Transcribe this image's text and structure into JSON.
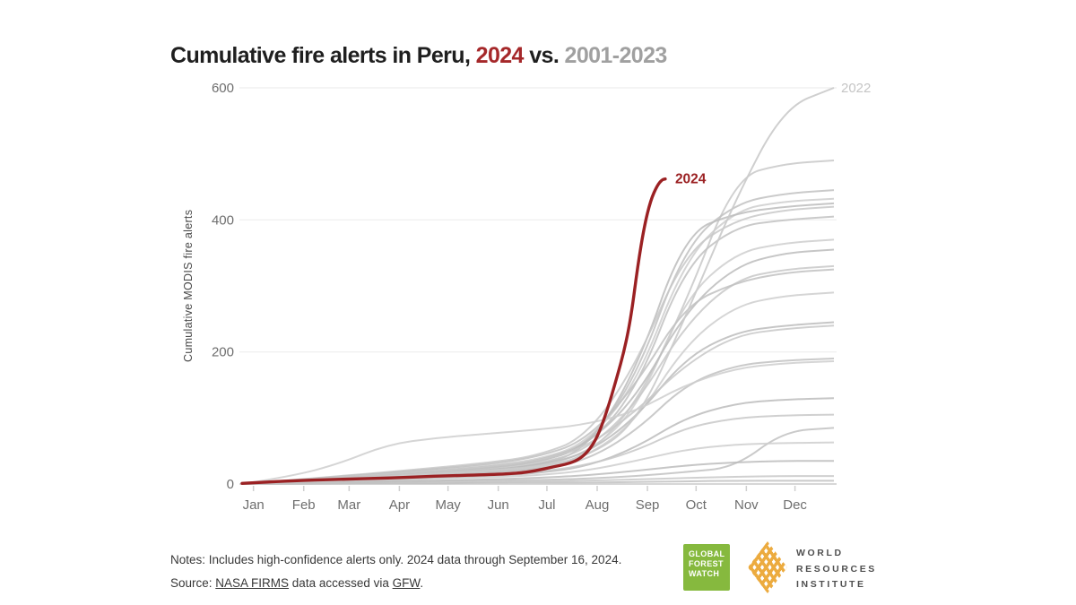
{
  "title": {
    "part_black": "Cumulative fire alerts in Peru, ",
    "part_red": "2024",
    "part_vs": " vs. ",
    "part_gray": "2001-2023"
  },
  "colors": {
    "highlight_red": "#9b2123",
    "title_red": "#a5282a",
    "title_gray": "#a0a0a0",
    "background_line_gray": "#c7c7c7",
    "axis_text": "#6e6e6e",
    "gfw_green": "#86b93e",
    "wri_gold": "#ecab3f"
  },
  "chart_data": {
    "type": "line",
    "title": "Cumulative fire alerts in Peru, 2024 vs. 2001-2023",
    "ylabel": "Cumulative MODIS fire alerts",
    "xlabel": "",
    "ylim": [
      0,
      600
    ],
    "yticks": [
      0,
      200,
      400,
      600
    ],
    "grid": "horizontal gridlines at y ticks, no legend, direct line labels",
    "months": [
      "Jan",
      "Feb",
      "Mar",
      "Apr",
      "May",
      "Jun",
      "Jul",
      "Aug",
      "Sep",
      "Oct",
      "Nov",
      "Dec"
    ],
    "month_start_days": [
      0,
      31,
      59,
      90,
      120,
      151,
      181,
      212,
      243,
      273,
      304,
      334
    ],
    "control_days": [
      0,
      31,
      59,
      90,
      120,
      151,
      181,
      212,
      243,
      273,
      304,
      334,
      365
    ],
    "highlight_series": {
      "name": "2024",
      "color": "#9b2123",
      "end_note": "data through September 16, 2024",
      "end_value": 462,
      "days": [
        0,
        31,
        59,
        90,
        120,
        151,
        170,
        181,
        192,
        200,
        207,
        213,
        219,
        225,
        231,
        236,
        240,
        244,
        248,
        252,
        256,
        259,
        261
      ],
      "values": [
        1,
        5,
        7,
        9,
        12,
        14,
        16,
        20,
        26,
        30,
        36,
        48,
        70,
        110,
        160,
        205,
        255,
        330,
        390,
        430,
        452,
        461,
        462
      ]
    },
    "labeled_background_series": {
      "name": "2022",
      "label_color": "#c5c5c5",
      "end_value": 600,
      "values": [
        0,
        4,
        8,
        12,
        16,
        20,
        26,
        40,
        90,
        250,
        430,
        570,
        600
      ]
    },
    "background_years": "2001-2023 (gray, unlabeled except 2022)",
    "background_series": [
      [
        0,
        3,
        6,
        10,
        14,
        18,
        24,
        40,
        120,
        270,
        465,
        485,
        490
      ],
      [
        0,
        4,
        9,
        14,
        18,
        24,
        32,
        55,
        160,
        360,
        425,
        440,
        445
      ],
      [
        0,
        5,
        10,
        16,
        22,
        28,
        36,
        60,
        150,
        340,
        415,
        428,
        432
      ],
      [
        0,
        3,
        7,
        11,
        15,
        20,
        28,
        50,
        170,
        380,
        410,
        420,
        425
      ],
      [
        0,
        6,
        12,
        18,
        25,
        32,
        42,
        70,
        180,
        350,
        400,
        415,
        420
      ],
      [
        0,
        4,
        8,
        13,
        18,
        24,
        32,
        55,
        140,
        330,
        390,
        400,
        405
      ],
      [
        0,
        3,
        6,
        10,
        14,
        19,
        26,
        45,
        110,
        280,
        350,
        365,
        370
      ],
      [
        0,
        5,
        9,
        14,
        20,
        26,
        34,
        58,
        130,
        260,
        330,
        350,
        355
      ],
      [
        0,
        4,
        8,
        12,
        17,
        22,
        30,
        50,
        120,
        240,
        310,
        325,
        330
      ],
      [
        0,
        6,
        11,
        17,
        23,
        30,
        40,
        65,
        150,
        270,
        305,
        320,
        325
      ],
      [
        0,
        3,
        6,
        9,
        13,
        17,
        23,
        40,
        95,
        210,
        270,
        285,
        290
      ],
      [
        0,
        4,
        8,
        12,
        16,
        21,
        28,
        45,
        100,
        190,
        230,
        240,
        245
      ],
      [
        0,
        5,
        10,
        15,
        20,
        26,
        34,
        55,
        110,
        180,
        225,
        235,
        240
      ],
      [
        0,
        3,
        6,
        10,
        13,
        17,
        22,
        35,
        80,
        150,
        180,
        187,
        190
      ],
      [
        0,
        12,
        30,
        60,
        70,
        76,
        82,
        90,
        110,
        150,
        175,
        183,
        186
      ],
      [
        0,
        2,
        4,
        6,
        9,
        12,
        16,
        26,
        55,
        100,
        122,
        128,
        130
      ],
      [
        0,
        3,
        5,
        8,
        11,
        14,
        18,
        28,
        50,
        85,
        100,
        104,
        105
      ],
      [
        0,
        1,
        2,
        3,
        4,
        5,
        6,
        8,
        12,
        18,
        25,
        80,
        85
      ],
      [
        0,
        2,
        4,
        6,
        8,
        10,
        13,
        20,
        35,
        52,
        60,
        62,
        63
      ],
      [
        0,
        1,
        2,
        4,
        5,
        7,
        9,
        13,
        20,
        28,
        33,
        35,
        35
      ],
      [
        0,
        1,
        1,
        2,
        2,
        3,
        4,
        5,
        7,
        9,
        11,
        12,
        12
      ],
      [
        0,
        0,
        1,
        1,
        1,
        2,
        2,
        2,
        3,
        4,
        5,
        5,
        5
      ]
    ]
  },
  "notes": {
    "line1": "Notes: Includes high-confidence alerts only. 2024 data through September 16, 2024.",
    "source_prefix": "Source: ",
    "source_link1": "NASA FIRMS",
    "source_mid": " data accessed via ",
    "source_link2": "GFW",
    "source_suffix": "."
  },
  "logos": {
    "gfw": {
      "line1": "GLOBAL",
      "line2": "FOREST",
      "line3": "WATCH"
    },
    "wri": {
      "line1": "WORLD",
      "line2": "RESOURCES",
      "line3": "INSTITUTE"
    }
  }
}
